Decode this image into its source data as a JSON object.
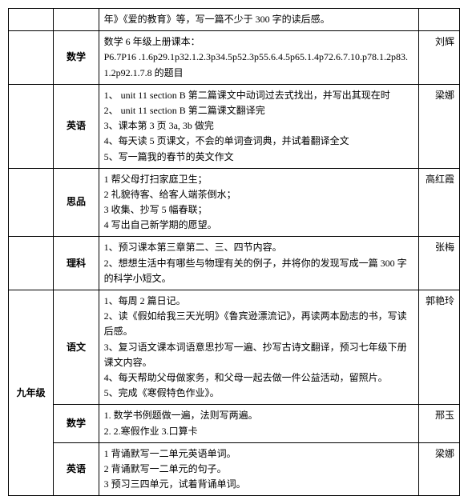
{
  "rows": [
    {
      "grade": "",
      "subject": "",
      "content": "年》《爱的教育》等，写一篇不少于 300 字的读后感。",
      "teacher": ""
    },
    {
      "grade": "",
      "subject": "数学",
      "content": "数学 6 年级上册课本：\nP6.7P16 .1.6p29.1p32.1.2.3p34.5p52.3p55.6.4.5p65.1.4p72.6.7.10.p78.1.2p83.1.2p92.1.7.8 的题目",
      "teacher": "刘辉"
    },
    {
      "grade": "",
      "subject": "英语",
      "content": "1、 unit 11 section B  第二篇课文中动词过去式找出，并写出其现在时\n2、 unit 11 section B  第二篇课文翻译完\n3、课本第 3 页 3a, 3b 做完\n4、每天读 5 页课文，不会的单词查词典，并试着翻译全文\n5、写一篇我的春节的英文作文",
      "teacher": "梁娜"
    },
    {
      "grade": "",
      "subject": "思品",
      "content": "1 帮父母打扫家庭卫生；\n2 礼貌待客、给客人端茶倒水；\n3 收集、抄写 5 幅春联；\n4 写出自己新学期的愿望。",
      "teacher": "高红霞"
    },
    {
      "grade": "",
      "subject": "理科",
      "content": "1、预习课本第三章第二、三、四节内容。\n2、想想生活中有哪些与物理有关的例子，并将你的发现写成一篇 300 字的科学小短文。",
      "teacher": "张梅"
    },
    {
      "grade": "九年级",
      "subject": "语文",
      "content": "1、每周 2 篇日记。\n2、读《假如给我三天光明》《鲁宾逊漂流记》，再读两本励志的书，写读后感。\n3、复习语文课本词语意思抄写一遍、抄写古诗文翻译，预习七年级下册课文内容。\n4、每天帮助父母做家务，和父母一起去做一件公益活动，留照片。\n5、完成《寒假特色作业》。",
      "teacher": "郭艳玲"
    },
    {
      "grade": "",
      "subject": "数学",
      "content": "1.  数学书例题做一遍，法则写两遍。\n2.  2.寒假作业 3.口算卡",
      "teacher": "邢玉"
    },
    {
      "grade": "",
      "subject": "英语",
      "content": "1 背诵默写一二单元英语单词。\n2 背诵默写一二单元的句子。\n3 预习三四单元，试着背诵单词。",
      "teacher": "梁娜"
    }
  ],
  "gradeRowSpan": 3
}
